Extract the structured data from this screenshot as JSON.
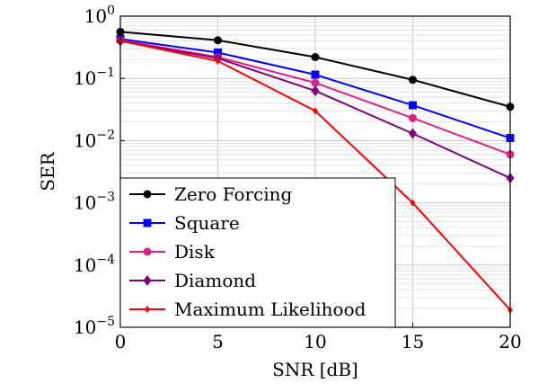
{
  "chart_data": {
    "type": "line",
    "xlabel": "SNR [dB]",
    "ylabel": "SER",
    "x": [
      0,
      5,
      10,
      15,
      20
    ],
    "xlim": [
      0,
      20
    ],
    "ylim": [
      1e-05,
      1
    ],
    "yscale": "log",
    "grid": true,
    "legend_position": "bottom-left",
    "x_ticks": [
      "0",
      "5",
      "10",
      "15",
      "20"
    ],
    "y_ticks": [
      {
        "base": "10",
        "exp": "0"
      },
      {
        "base": "10",
        "exp": "−1"
      },
      {
        "base": "10",
        "exp": "−2"
      },
      {
        "base": "10",
        "exp": "−3"
      },
      {
        "base": "10",
        "exp": "−4"
      },
      {
        "base": "10",
        "exp": "−5"
      }
    ],
    "series": [
      {
        "name": "Zero Forcing",
        "color": "#000000",
        "marker": "circle",
        "values": [
          0.56,
          0.41,
          0.22,
          0.095,
          0.035
        ]
      },
      {
        "name": "Square",
        "color": "#0000ff",
        "marker": "square",
        "values": [
          0.43,
          0.26,
          0.115,
          0.037,
          0.011
        ]
      },
      {
        "name": "Disk",
        "color": "#e0208a",
        "marker": "circle",
        "values": [
          0.41,
          0.22,
          0.085,
          0.023,
          0.006
        ]
      },
      {
        "name": "Diamond",
        "color": "#800080",
        "marker": "diamond",
        "values": [
          0.4,
          0.21,
          0.063,
          0.013,
          0.0025
        ]
      },
      {
        "name": "Maximum Likelihood",
        "color": "#ff0000",
        "marker": "small-diamond",
        "values": [
          0.4,
          0.19,
          0.03,
          0.001,
          1.9e-05
        ]
      }
    ]
  }
}
